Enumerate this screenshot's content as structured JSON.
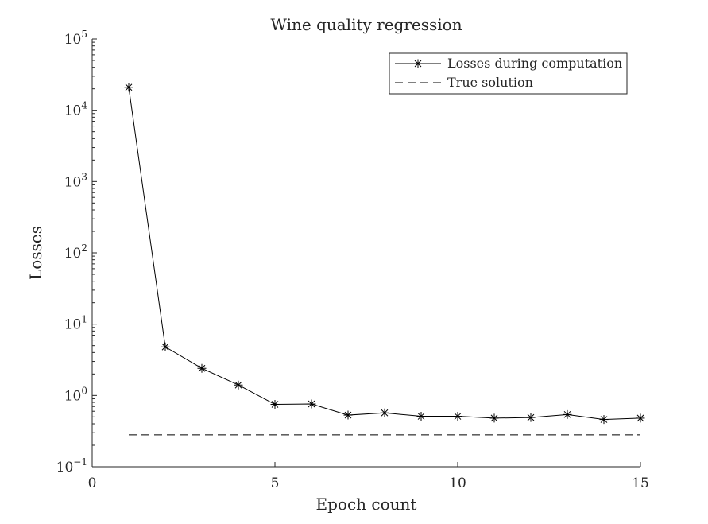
{
  "chart_data": {
    "type": "line",
    "title": "Wine quality regression",
    "xlabel": "Epoch count",
    "ylabel": "Losses",
    "xlim": [
      0,
      15
    ],
    "ylim": [
      0.1,
      100000
    ],
    "yscale": "log",
    "grid": false,
    "legend_position": "top-right",
    "x_ticks": [
      {
        "value": 0,
        "label": "0"
      },
      {
        "value": 5,
        "label": "5"
      },
      {
        "value": 10,
        "label": "10"
      },
      {
        "value": 15,
        "label": "15"
      }
    ],
    "y_ticks": [
      {
        "value": 0.1,
        "base": "10",
        "exp": "−1"
      },
      {
        "value": 1,
        "base": "10",
        "exp": "0"
      },
      {
        "value": 10,
        "base": "10",
        "exp": "1"
      },
      {
        "value": 100,
        "base": "10",
        "exp": "2"
      },
      {
        "value": 1000,
        "base": "10",
        "exp": "3"
      },
      {
        "value": 10000,
        "base": "10",
        "exp": "4"
      },
      {
        "value": 100000,
        "base": "10",
        "exp": "5"
      }
    ],
    "series": [
      {
        "name": "Losses during computation",
        "style": "solid-star",
        "color": "#000000",
        "x": [
          1,
          2,
          3,
          4,
          5,
          6,
          7,
          8,
          9,
          10,
          11,
          12,
          13,
          14,
          15
        ],
        "y": [
          21000,
          4.8,
          2.4,
          1.4,
          0.75,
          0.76,
          0.53,
          0.57,
          0.51,
          0.51,
          0.48,
          0.49,
          0.54,
          0.46,
          0.48
        ]
      },
      {
        "name": "True solution",
        "style": "dashed",
        "color": "#000000",
        "x": [
          1,
          15
        ],
        "y": [
          0.28,
          0.28
        ]
      }
    ]
  }
}
